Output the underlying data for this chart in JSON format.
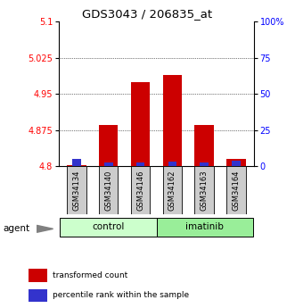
{
  "title": "GDS3043 / 206835_at",
  "samples": [
    "GSM34134",
    "GSM34140",
    "GSM34146",
    "GSM34162",
    "GSM34163",
    "GSM34164"
  ],
  "groups": [
    "control",
    "control",
    "control",
    "imatinib",
    "imatinib",
    "imatinib"
  ],
  "red_values": [
    4.802,
    4.885,
    4.975,
    4.99,
    4.885,
    4.815
  ],
  "blue_values": [
    4.815,
    4.808,
    4.808,
    4.81,
    4.808,
    4.812
  ],
  "ymin": 4.8,
  "ymax": 5.1,
  "yticks_left": [
    4.8,
    4.875,
    4.95,
    5.025,
    5.1
  ],
  "yticks_right": [
    0,
    25,
    50,
    75,
    100
  ],
  "bar_width": 0.6,
  "red_color": "#cc0000",
  "blue_color": "#3333cc",
  "control_color": "#ccffcc",
  "imatinib_color": "#99ee99",
  "group_box_color": "#cccccc",
  "legend_red": "transformed count",
  "legend_blue": "percentile rank within the sample",
  "agent_label": "agent"
}
